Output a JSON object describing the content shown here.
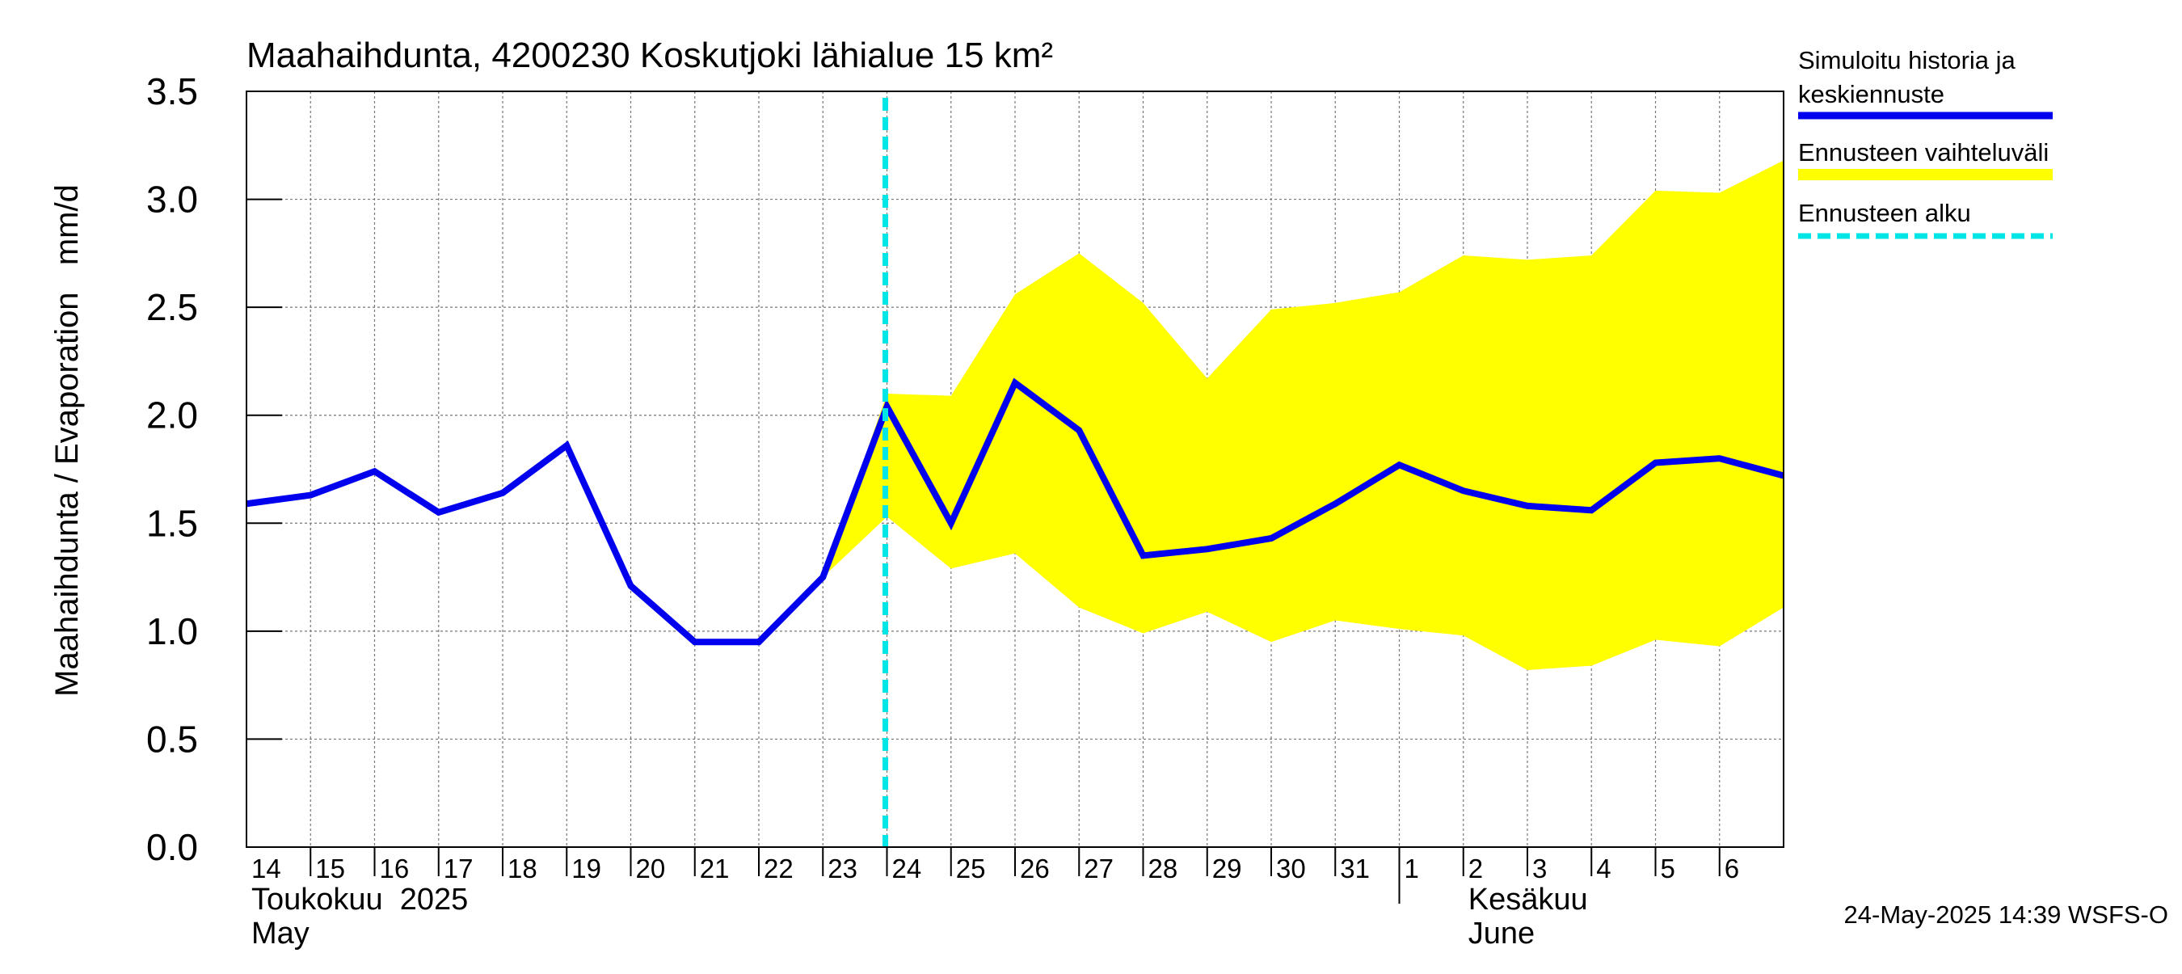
{
  "chart_data": {
    "type": "area",
    "title": "Maahaihdunta, 4200230 Koskutjoki lähialue 15 km²",
    "ylabel": "Maahaihdunta / Evaporation   mm/d",
    "ylim": [
      0.0,
      3.5
    ],
    "yticks": [
      "0.0",
      "0.5",
      "1.0",
      "1.5",
      "2.0",
      "2.5",
      "3.0",
      "3.5"
    ],
    "x": [
      "2025-05-14",
      "2025-05-15",
      "2025-05-16",
      "2025-05-17",
      "2025-05-18",
      "2025-05-19",
      "2025-05-20",
      "2025-05-21",
      "2025-05-22",
      "2025-05-23",
      "2025-05-24",
      "2025-05-25",
      "2025-05-26",
      "2025-05-27",
      "2025-05-28",
      "2025-05-29",
      "2025-05-30",
      "2025-05-31",
      "2025-06-01",
      "2025-06-02",
      "2025-06-03",
      "2025-06-04",
      "2025-06-05",
      "2025-06-06",
      "2025-06-07"
    ],
    "xtick_labels": [
      "14",
      "15",
      "16",
      "17",
      "18",
      "19",
      "20",
      "21",
      "22",
      "23",
      "24",
      "25",
      "26",
      "27",
      "28",
      "29",
      "30",
      "31",
      "1",
      "2",
      "3",
      "4",
      "5",
      "6"
    ],
    "month_labels": [
      {
        "fi": "Toukokuu  2025",
        "en": "May"
      },
      {
        "fi": "Kesäkuu",
        "en": "June"
      }
    ],
    "grid": true,
    "legend_position": "right",
    "series": [
      {
        "name": "Simuloitu historia ja keskiennuste",
        "color": "#0000ee",
        "x": [
          "2025-05-14",
          "2025-05-15",
          "2025-05-16",
          "2025-05-17",
          "2025-05-18",
          "2025-05-19",
          "2025-05-20",
          "2025-05-21",
          "2025-05-22",
          "2025-05-23",
          "2025-05-24",
          "2025-05-25",
          "2025-05-26",
          "2025-05-27",
          "2025-05-28",
          "2025-05-29",
          "2025-05-30",
          "2025-05-31",
          "2025-06-01",
          "2025-06-02",
          "2025-06-03",
          "2025-06-04",
          "2025-06-05",
          "2025-06-06",
          "2025-06-07"
        ],
        "values": [
          1.59,
          1.63,
          1.74,
          1.55,
          1.64,
          1.86,
          1.21,
          0.95,
          0.95,
          1.25,
          2.04,
          1.5,
          2.15,
          1.93,
          1.35,
          1.38,
          1.43,
          1.59,
          1.77,
          1.65,
          1.58,
          1.56,
          1.78,
          1.8,
          1.72
        ]
      },
      {
        "name": "Ennusteen vaihteluväli",
        "color": "#ffff00",
        "x": [
          "2025-05-23",
          "2025-05-24",
          "2025-05-25",
          "2025-05-26",
          "2025-05-27",
          "2025-05-28",
          "2025-05-29",
          "2025-05-30",
          "2025-05-31",
          "2025-06-01",
          "2025-06-02",
          "2025-06-03",
          "2025-06-04",
          "2025-06-05",
          "2025-06-06",
          "2025-06-07"
        ],
        "upper": [
          1.25,
          2.1,
          2.09,
          2.56,
          2.75,
          2.52,
          2.17,
          2.49,
          2.52,
          2.57,
          2.74,
          2.72,
          2.74,
          3.04,
          3.03,
          3.18
        ],
        "lower": [
          1.25,
          1.53,
          1.29,
          1.36,
          1.11,
          0.99,
          1.09,
          0.95,
          1.05,
          1.01,
          0.98,
          0.82,
          0.84,
          0.96,
          0.93,
          1.11
        ]
      }
    ],
    "forecast_start": {
      "name": "Ennusteen alku",
      "x": "2025-05-24",
      "color": "#00e5e5"
    },
    "timestamp": "24-May-2025 14:39 WSFS-O"
  }
}
